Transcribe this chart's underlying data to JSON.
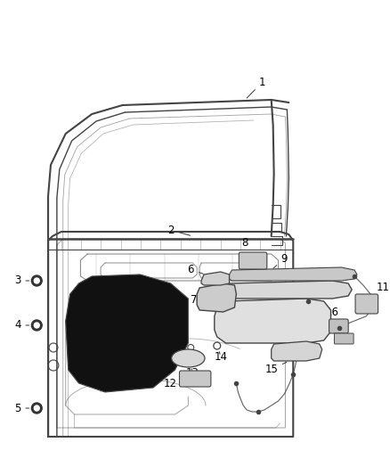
{
  "bg_color": "#ffffff",
  "fig_width": 4.38,
  "fig_height": 5.33,
  "dpi": 100,
  "line_color": "#444444",
  "label_color": "#000000",
  "font_size": 8.5
}
